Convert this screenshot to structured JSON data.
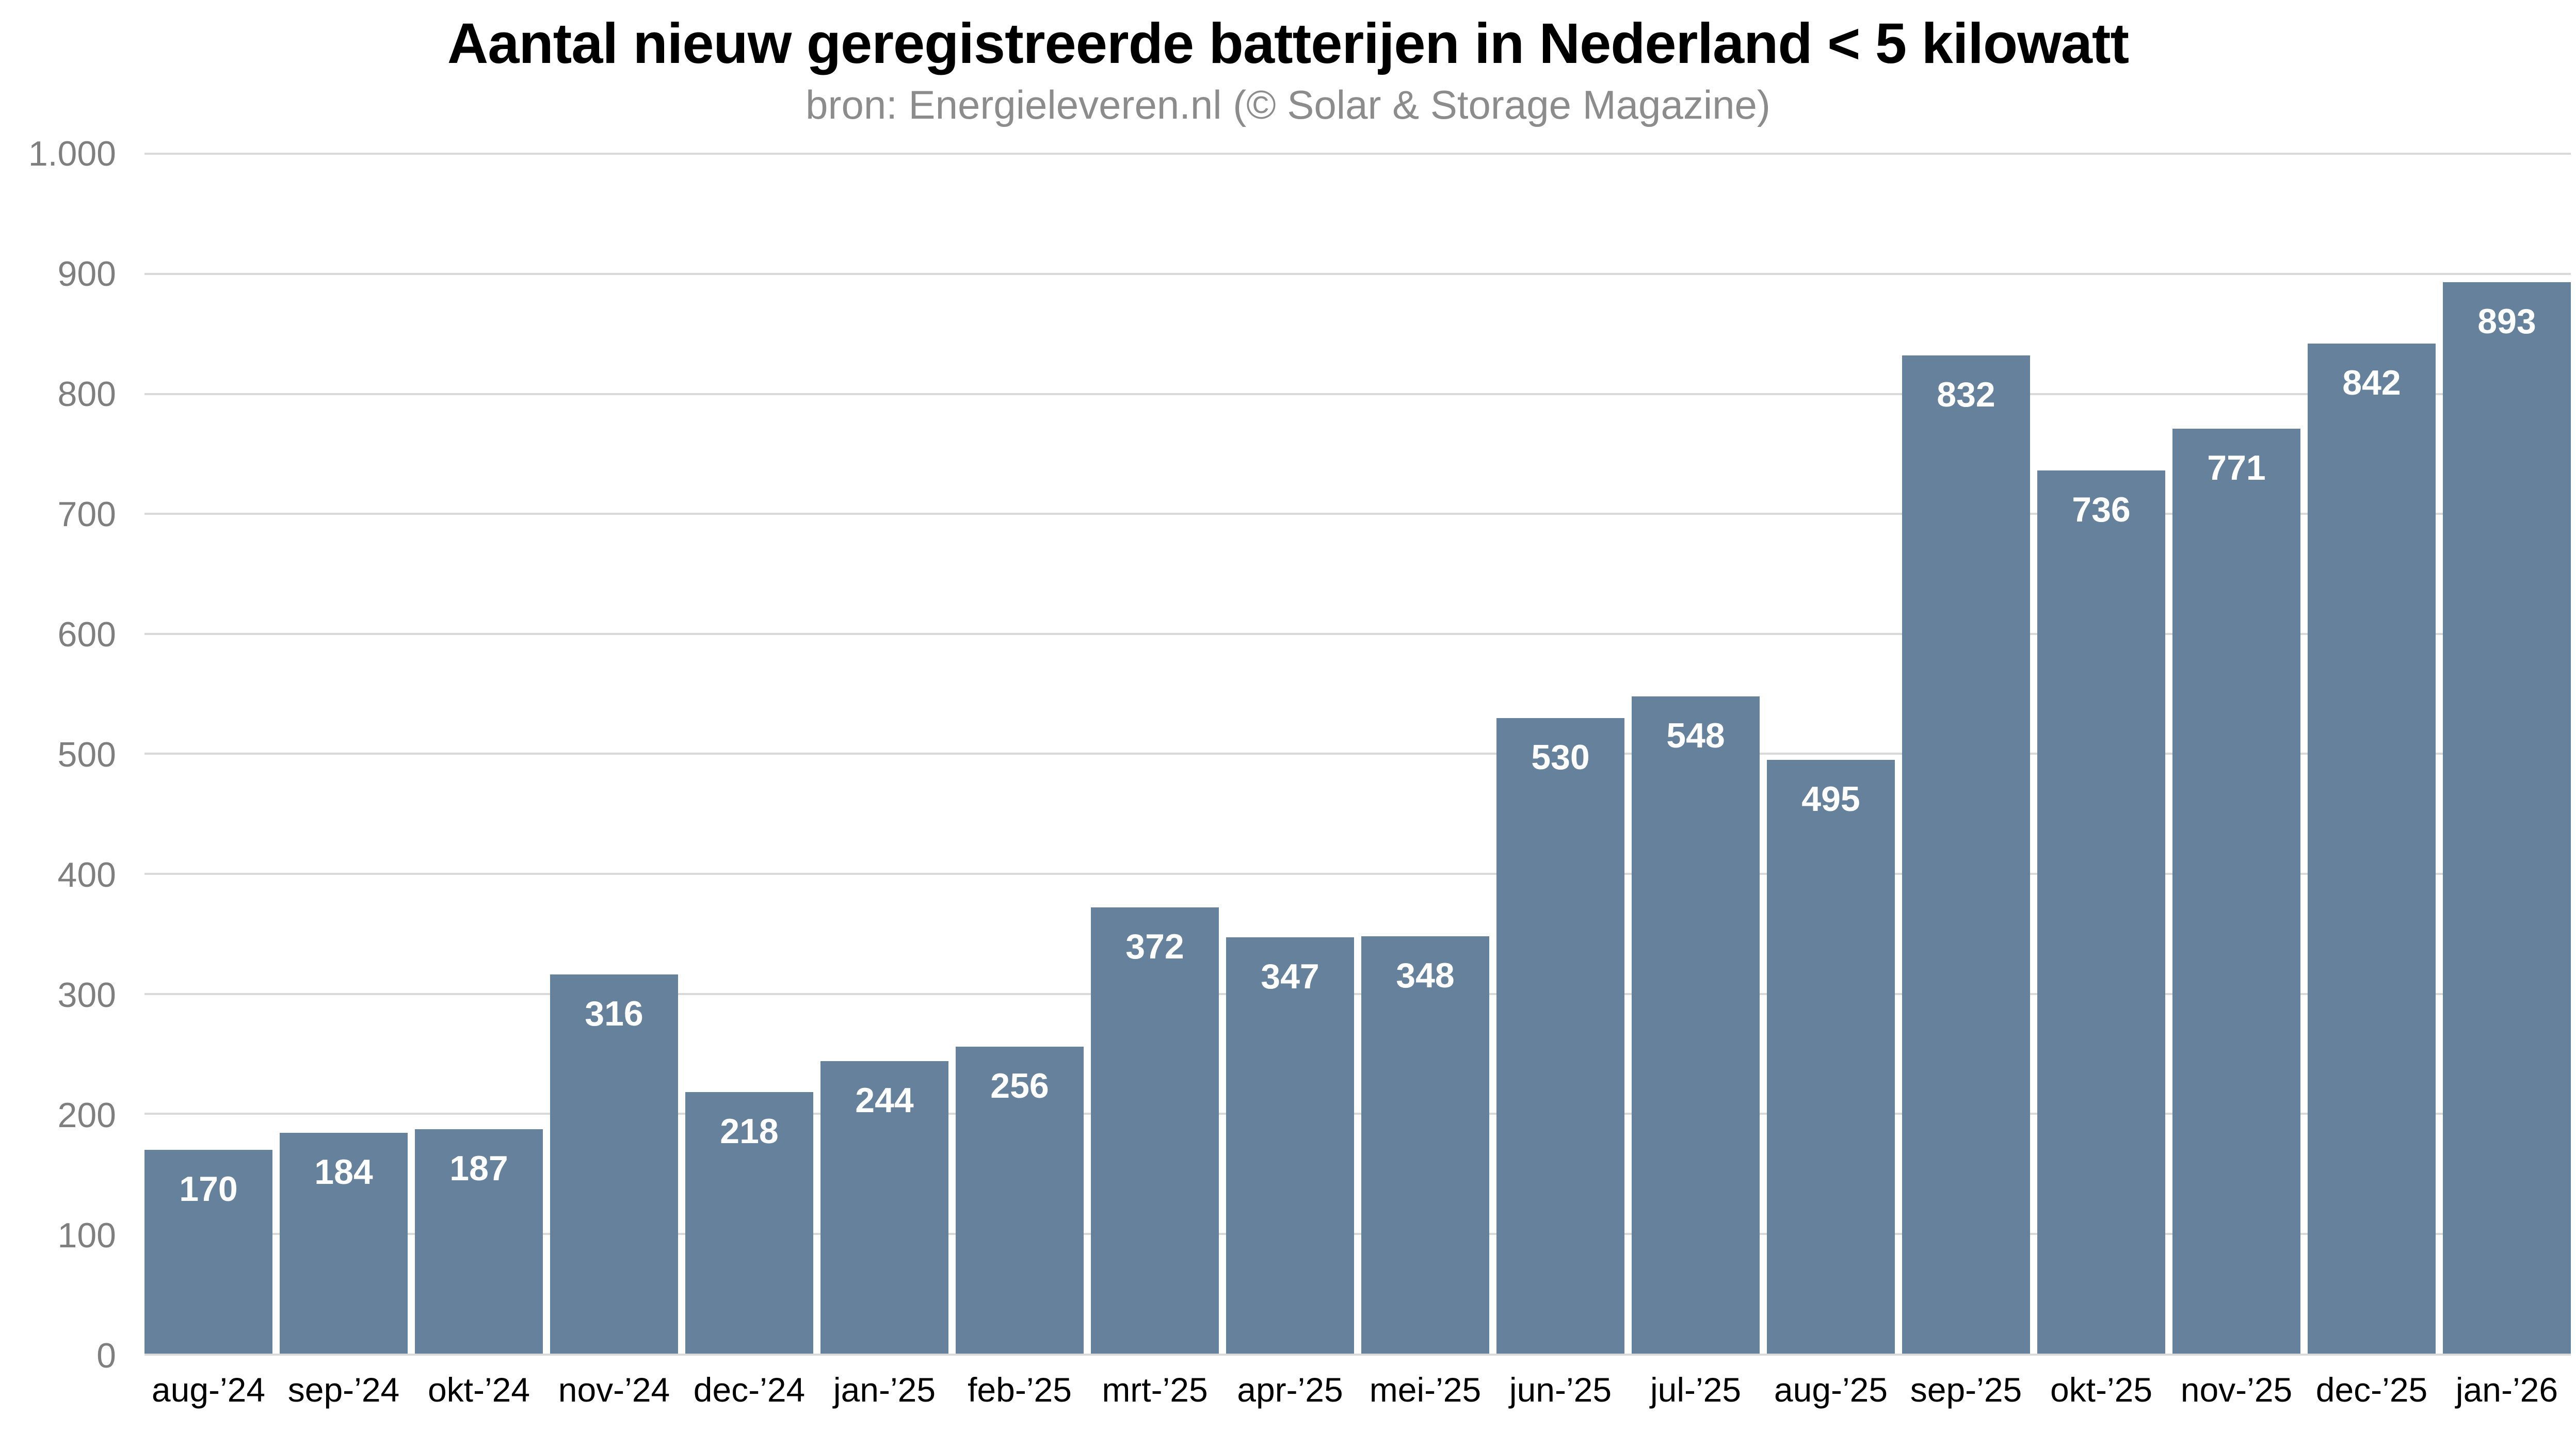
{
  "chart": {
    "title": "Aantal nieuw geregistreerde batterijen in Nederland < 5 kilowatt",
    "subtitle": "bron: Energieleveren.nl (© Solar & Storage Magazine)"
  },
  "chart_data": {
    "type": "bar",
    "title": "Aantal nieuw geregistreerde batterijen in Nederland < 5 kilowatt",
    "subtitle": "bron: Energieleveren.nl (© Solar & Storage Magazine)",
    "categories": [
      "aug-’24",
      "sep-’24",
      "okt-’24",
      "nov-’24",
      "dec-’24",
      "jan-’25",
      "feb-’25",
      "mrt-’25",
      "apr-’25",
      "mei-’25",
      "jun-’25",
      "jul-’25",
      "aug-’25",
      "sep-’25",
      "okt-’25",
      "nov-’25",
      "dec-’25",
      "jan-’26"
    ],
    "values": [
      170,
      184,
      187,
      316,
      218,
      244,
      256,
      372,
      347,
      348,
      530,
      548,
      495,
      832,
      736,
      771,
      842,
      893
    ],
    "xlabel": "",
    "ylabel": "",
    "ylim": [
      0,
      1000
    ],
    "ytick_step": 100,
    "ytick_labels": [
      "0",
      "100",
      "200",
      "300",
      "400",
      "500",
      "600",
      "700",
      "800",
      "900",
      "1.000"
    ],
    "grid": true,
    "legend": false,
    "bar_labels_shown": true,
    "bar_color": "#65819B",
    "bar_label_color": "#FFFFFF",
    "grid_color": "#D9D9D9",
    "ytick_color": "#7F7F7F",
    "xtick_color": "#000000",
    "title_color": "#000000",
    "subtitle_color": "#8C8C8C",
    "background_color": "#FFFFFF"
  }
}
